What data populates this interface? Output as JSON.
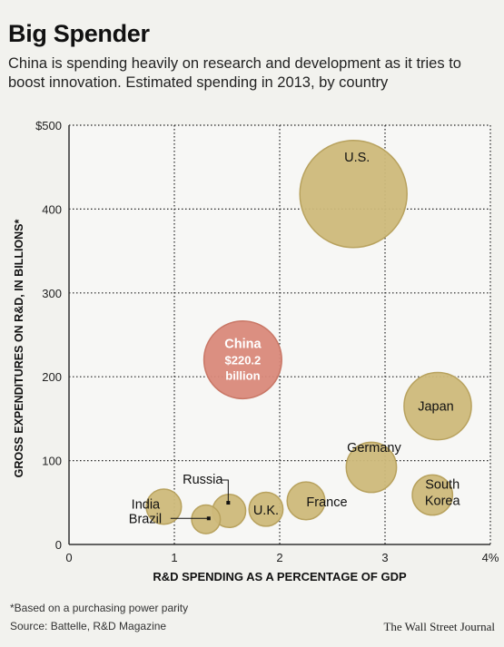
{
  "header": {
    "title": "Big Spender",
    "subtitle": "China is spending heavily on research and development as it tries to boost innovation. Estimated spending in 2013, by country"
  },
  "footer": {
    "footnote": "*Based on a purchasing power parity",
    "source": "Source: Battelle, R&D Magazine",
    "credit": "The Wall Street Journal"
  },
  "colors": {
    "bubble_default": "#cdb97a",
    "bubble_default_stroke": "#b8a25e",
    "bubble_highlight": "#d9897a",
    "bubble_highlight_stroke": "#c97766",
    "highlight_text": "#ffffff",
    "plot_background": "#f7f7f5",
    "grid": "#222222"
  },
  "chart_data": {
    "type": "scatter",
    "encoding": "bubble",
    "xlabel": "R&D SPENDING AS A PERCENTAGE OF GDP",
    "ylabel": "GROSS EXPENDITURES ON R&D, IN BILLIONS*",
    "xlim": [
      0,
      4
    ],
    "ylim": [
      0,
      500
    ],
    "x_ticks": [
      {
        "value": 0,
        "label": "0"
      },
      {
        "value": 1,
        "label": "1"
      },
      {
        "value": 2,
        "label": "2"
      },
      {
        "value": 3,
        "label": "3"
      },
      {
        "value": 4,
        "label": "4%"
      }
    ],
    "y_ticks": [
      {
        "value": 0,
        "label": "0"
      },
      {
        "value": 100,
        "label": "100"
      },
      {
        "value": 200,
        "label": "200"
      },
      {
        "value": 300,
        "label": "300"
      },
      {
        "value": 400,
        "label": "400"
      },
      {
        "value": 500,
        "label": "$500"
      }
    ],
    "grid": true,
    "points": [
      {
        "name": "U.S.",
        "x": 2.7,
        "y": 418,
        "value": 418
      },
      {
        "name": "China",
        "x": 1.65,
        "y": 220.2,
        "value": 220.2,
        "highlight": true,
        "value_label": "$220.2",
        "unit_label": "billion"
      },
      {
        "name": "Japan",
        "x": 3.5,
        "y": 165,
        "value": 165
      },
      {
        "name": "Germany",
        "x": 2.87,
        "y": 92,
        "value": 92
      },
      {
        "name": "South Korea",
        "x": 3.45,
        "y": 59,
        "value": 59,
        "label_lines": [
          "South",
          "Korea"
        ]
      },
      {
        "name": "France",
        "x": 2.25,
        "y": 52,
        "value": 52
      },
      {
        "name": "U.K.",
        "x": 1.87,
        "y": 42,
        "value": 42
      },
      {
        "name": "India",
        "x": 0.9,
        "y": 45,
        "value": 45
      },
      {
        "name": "Russia",
        "x": 1.52,
        "y": 40,
        "value": 40
      },
      {
        "name": "Brazil",
        "x": 1.3,
        "y": 30,
        "value": 30
      }
    ]
  }
}
